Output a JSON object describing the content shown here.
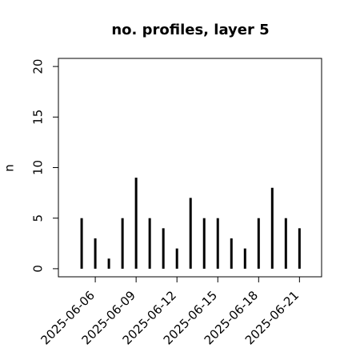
{
  "chart_data": {
    "type": "bar",
    "title": "no. profiles, layer 5",
    "y_label": "n",
    "x": [
      "2025-06-05",
      "2025-06-06",
      "2025-06-07",
      "2025-06-08",
      "2025-06-09",
      "2025-06-10",
      "2025-06-11",
      "2025-06-12",
      "2025-06-13",
      "2025-06-14",
      "2025-06-15",
      "2025-06-16",
      "2025-06-17",
      "2025-06-18",
      "2025-06-19",
      "2025-06-20",
      "2025-06-21"
    ],
    "values": [
      5,
      3,
      1,
      5,
      9,
      5,
      4,
      2,
      7,
      5,
      5,
      3,
      2,
      5,
      8,
      5,
      4
    ],
    "color": "#000000",
    "xlim": [
      "2025-06-03T07:00",
      "2025-06-22T15:00"
    ],
    "xticks": [
      "2025-06-06",
      "2025-06-09",
      "2025-06-12",
      "2025-06-15",
      "2025-06-18",
      "2025-06-21"
    ],
    "xtick_colors": [
      "#000000",
      "#000000",
      "#228b22",
      "#000000",
      "#000000",
      "#000000"
    ],
    "ylim": [
      -0.8,
      20.8
    ],
    "yticks": [
      0,
      5,
      10,
      15,
      20
    ]
  }
}
